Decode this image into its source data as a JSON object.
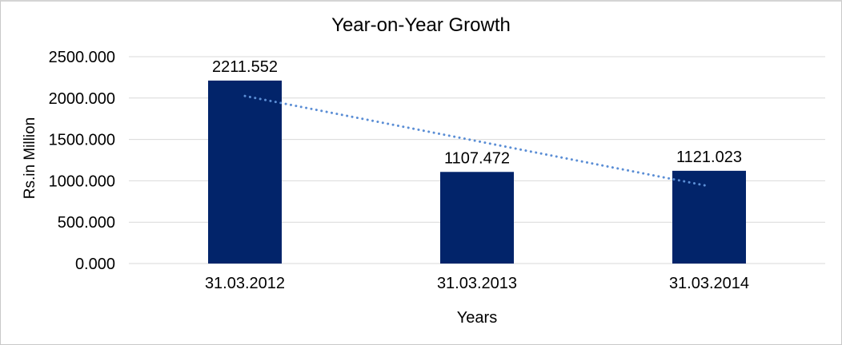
{
  "frame": {
    "background": "#ffffff",
    "border_color": "#c9c9c9"
  },
  "chart_data": {
    "type": "bar",
    "title": "Year-on-Year Growth",
    "categories": [
      "31.03.2012",
      "31.03.2013",
      "31.03.2014"
    ],
    "values": [
      2211.552,
      1107.472,
      1121.023
    ],
    "value_labels": [
      "2211.552",
      "1107.472",
      "1121.023"
    ],
    "xlabel": "Years",
    "ylabel": "Rs.in Million",
    "ylim": [
      0,
      2500
    ],
    "ytick_labels": [
      "0.000",
      "500.000",
      "1000.000",
      "1500.000",
      "2000.000",
      "2500.000"
    ],
    "grid": true,
    "legend": "none",
    "bar_color": "#02246a",
    "gridline_color": "#d9d9d9",
    "text_color": "#000000",
    "trendline": {
      "type": "linear",
      "style": "dotted",
      "color": "#5b8ed5",
      "endpoint_values_estimated": [
        2025,
        935
      ]
    }
  }
}
